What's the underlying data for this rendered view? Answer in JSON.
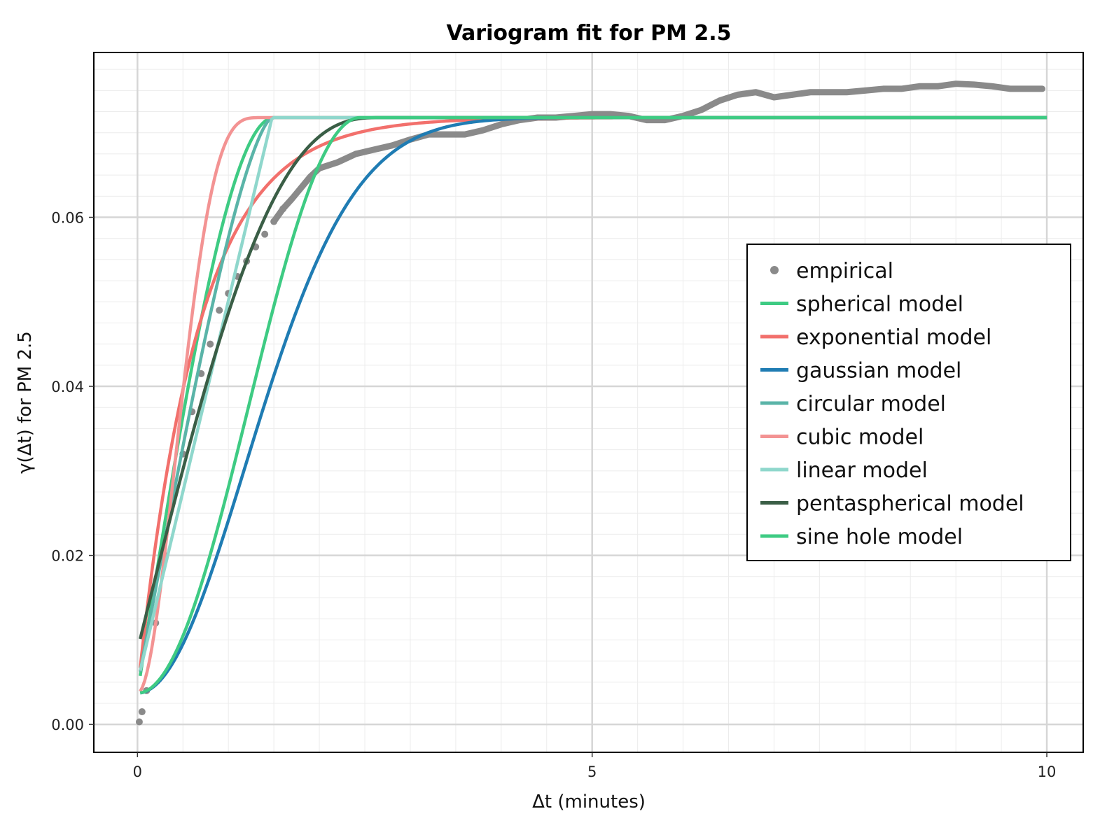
{
  "chart_data": {
    "type": "line",
    "title": "Variogram fit for PM 2.5",
    "xlabel": "Δt (minutes)",
    "ylabel": "γ(Δt) for PM 2.5",
    "xlim": [
      -0.48,
      10.4
    ],
    "ylim": [
      -0.0033,
      0.0795
    ],
    "x_ticks": [
      0,
      5,
      10
    ],
    "x_tick_labels": [
      "0",
      "5",
      "10"
    ],
    "y_ticks": [
      0.0,
      0.02,
      0.04,
      0.06
    ],
    "y_tick_labels": [
      "0.00",
      "0.02",
      "0.04",
      "0.06"
    ],
    "grid": true,
    "legend_position": "right",
    "empirical": {
      "name": "empirical",
      "color": "#8a8a8a",
      "x": [
        0.02,
        0.05,
        0.1,
        0.2,
        0.3,
        0.4,
        0.5,
        0.6,
        0.7,
        0.8,
        0.9,
        1.0,
        1.1,
        1.2,
        1.3,
        1.4,
        1.5,
        1.6,
        1.7,
        1.8,
        1.9,
        2.0,
        2.2,
        2.4,
        2.6,
        2.8,
        3.0,
        3.2,
        3.4,
        3.6,
        3.8,
        4.0,
        4.2,
        4.4,
        4.6,
        4.8,
        5.0,
        5.2,
        5.4,
        5.6,
        5.8,
        6.0,
        6.2,
        6.4,
        6.6,
        6.8,
        7.0,
        7.2,
        7.4,
        7.6,
        7.8,
        8.0,
        8.2,
        8.4,
        8.6,
        8.8,
        9.0,
        9.2,
        9.4,
        9.6,
        9.8,
        9.95
      ],
      "y": [
        0.0003,
        0.0015,
        0.004,
        0.012,
        0.02,
        0.027,
        0.032,
        0.037,
        0.0415,
        0.045,
        0.049,
        0.051,
        0.053,
        0.0548,
        0.0565,
        0.058,
        0.0595,
        0.061,
        0.0622,
        0.0635,
        0.0648,
        0.0658,
        0.0665,
        0.0675,
        0.068,
        0.0685,
        0.0692,
        0.0698,
        0.0698,
        0.0698,
        0.0703,
        0.071,
        0.0715,
        0.0718,
        0.0718,
        0.072,
        0.0722,
        0.0722,
        0.072,
        0.0715,
        0.0715,
        0.072,
        0.0727,
        0.0738,
        0.0745,
        0.0748,
        0.0742,
        0.0745,
        0.0748,
        0.0748,
        0.0748,
        0.075,
        0.0752,
        0.0752,
        0.0755,
        0.0755,
        0.0758,
        0.0757,
        0.0755,
        0.0752,
        0.0752,
        0.0752
      ]
    },
    "models": [
      {
        "name": "spherical model",
        "color": "#3ecb83",
        "kind": "spherical",
        "nugget": 0.0037,
        "sill": 0.0718,
        "range": 1.5
      },
      {
        "name": "exponential model",
        "color": "#f2706c",
        "kind": "exponential",
        "nugget": 0.0037,
        "sill": 0.0718,
        "range": 2.0
      },
      {
        "name": "gaussian model",
        "color": "#1f7cb3",
        "kind": "gaussian",
        "nugget": 0.0037,
        "sill": 0.0718,
        "range": 2.9
      },
      {
        "name": "circular model",
        "color": "#5ab4a8",
        "kind": "circular",
        "nugget": 0.0045,
        "sill": 0.0718,
        "range": 1.48
      },
      {
        "name": "cubic model",
        "color": "#f39393",
        "kind": "cubic",
        "nugget": 0.0037,
        "sill": 0.0718,
        "range": 1.38
      },
      {
        "name": "linear model",
        "color": "#8fd7cc",
        "kind": "linear",
        "nugget": 0.005,
        "sill": 0.0718,
        "range": 1.48
      },
      {
        "name": "pentaspherical model",
        "color": "#3a5e46",
        "kind": "pentaspherical",
        "nugget": 0.0088,
        "sill": 0.0718,
        "range": 2.7
      },
      {
        "name": "sine hole model",
        "color": "#3ecb83",
        "kind": "sinehole",
        "nugget": 0.0037,
        "sill": 0.0718,
        "range": 2.45
      }
    ]
  }
}
